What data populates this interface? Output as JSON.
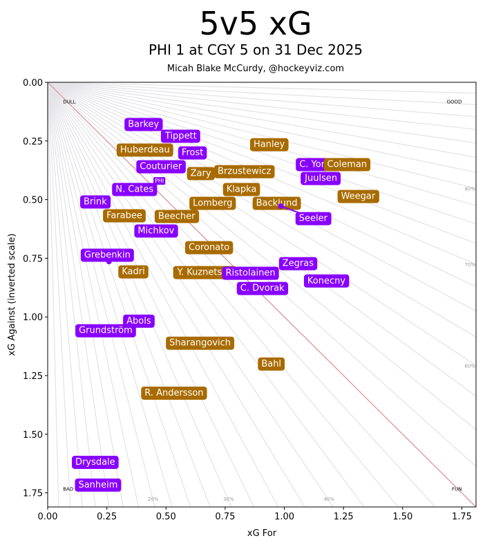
{
  "chart_data": {
    "type": "scatter",
    "title": "5v5 xG",
    "subtitle": "PHI 1 at CGY 5 on 31 Dec 2025",
    "credit": "Micah Blake McCurdy, @hockeyviz.com",
    "xlabel": "xG For",
    "ylabel": "xG Against (inverted scale)",
    "xlim": [
      0,
      1.81
    ],
    "ylim": [
      0,
      1.81
    ],
    "y_inverted": true,
    "xticks": [
      "0.00",
      "0.25",
      "0.50",
      "0.75",
      "1.00",
      "1.25",
      "1.50",
      "1.75"
    ],
    "yticks": [
      "0.00",
      "0.25",
      "0.50",
      "0.75",
      "1.00",
      "1.25",
      "1.50",
      "1.75"
    ],
    "corner_labels": {
      "top_left": "DULL",
      "top_right": "GOOD",
      "bottom_left": "BAD",
      "bottom_right": "FUN"
    },
    "share_labels_bottom": [
      "20%",
      "30%",
      "40%"
    ],
    "share_labels_right": [
      "60%",
      "70%",
      "80%"
    ],
    "diagonal_color": "#e0a0a8",
    "team_colors": {
      "PHI": "#8800ff",
      "CGY": "#a86b00"
    },
    "team_label": {
      "text": "PHI",
      "team": "PHI",
      "x": 0.472,
      "y": 0.419
    },
    "players": [
      {
        "name": "Barkey",
        "team": "PHI",
        "x": 0.405,
        "y": 0.177
      },
      {
        "name": "Tippett",
        "team": "PHI",
        "x": 0.563,
        "y": 0.227
      },
      {
        "name": "Huberdeau",
        "team": "CGY",
        "x": 0.411,
        "y": 0.286
      },
      {
        "name": "Frost",
        "team": "PHI",
        "x": 0.612,
        "y": 0.298
      },
      {
        "name": "Couturier",
        "team": "PHI",
        "x": 0.478,
        "y": 0.357
      },
      {
        "name": "Hanley",
        "team": "CGY",
        "x": 0.936,
        "y": 0.263
      },
      {
        "name": "Zary",
        "team": "CGY",
        "x": 0.647,
        "y": 0.386
      },
      {
        "name": "Brzustewicz",
        "team": "CGY",
        "x": 0.831,
        "y": 0.378
      },
      {
        "name": "C. York",
        "team": "PHI",
        "x": 1.128,
        "y": 0.348
      },
      {
        "name": "Coleman",
        "team": "CGY",
        "x": 1.265,
        "y": 0.348
      },
      {
        "name": "Juulsen",
        "team": "PHI",
        "x": 1.155,
        "y": 0.407
      },
      {
        "name": "N. Cates",
        "team": "PHI",
        "x": 0.367,
        "y": 0.454
      },
      {
        "name": "Klapka",
        "team": "CGY",
        "x": 0.819,
        "y": 0.454
      },
      {
        "name": "Weegar",
        "team": "CGY",
        "x": 1.312,
        "y": 0.484
      },
      {
        "name": "Brink",
        "team": "PHI",
        "x": 0.201,
        "y": 0.507
      },
      {
        "name": "Lomberg",
        "team": "CGY",
        "x": 0.697,
        "y": 0.513
      },
      {
        "name": "Backlund",
        "team": "CGY",
        "x": 0.968,
        "y": 0.513
      },
      {
        "name": "Seeler",
        "team": "PHI",
        "x": 0.985,
        "y": 0.528,
        "label_offset": true
      },
      {
        "name": "Farabee",
        "team": "CGY",
        "x": 0.324,
        "y": 0.566
      },
      {
        "name": "Beecher",
        "team": "CGY",
        "x": 0.545,
        "y": 0.569
      },
      {
        "name": "Michkov",
        "team": "PHI",
        "x": 0.458,
        "y": 0.631
      },
      {
        "name": "Coronato",
        "team": "CGY",
        "x": 0.682,
        "y": 0.702
      },
      {
        "name": "Grebenkin",
        "team": "PHI",
        "x": 0.259,
        "y": 0.764,
        "label_offset": true
      },
      {
        "name": "Zegras",
        "team": "PHI",
        "x": 1.058,
        "y": 0.77
      },
      {
        "name": "Kadri",
        "team": "CGY",
        "x": 0.362,
        "y": 0.805
      },
      {
        "name": "Y. Kuznetsov",
        "team": "CGY",
        "x": 0.665,
        "y": 0.808
      },
      {
        "name": "Ristolainen",
        "team": "PHI",
        "x": 0.857,
        "y": 0.811
      },
      {
        "name": "Konecny",
        "team": "PHI",
        "x": 1.178,
        "y": 0.844
      },
      {
        "name": "C. Dvorak",
        "team": "PHI",
        "x": 0.907,
        "y": 0.876
      },
      {
        "name": "Abols",
        "team": "PHI",
        "x": 0.385,
        "y": 1.015
      },
      {
        "name": "Grundström",
        "team": "PHI",
        "x": 0.245,
        "y": 1.056
      },
      {
        "name": "Sharangovich",
        "team": "CGY",
        "x": 0.644,
        "y": 1.109
      },
      {
        "name": "Bahl",
        "team": "CGY",
        "x": 0.945,
        "y": 1.198
      },
      {
        "name": "R. Andersson",
        "team": "CGY",
        "x": 0.534,
        "y": 1.322
      },
      {
        "name": "Drysdale",
        "team": "PHI",
        "x": 0.201,
        "y": 1.617
      },
      {
        "name": "Sanheim",
        "team": "PHI",
        "x": 0.213,
        "y": 1.714
      }
    ]
  }
}
